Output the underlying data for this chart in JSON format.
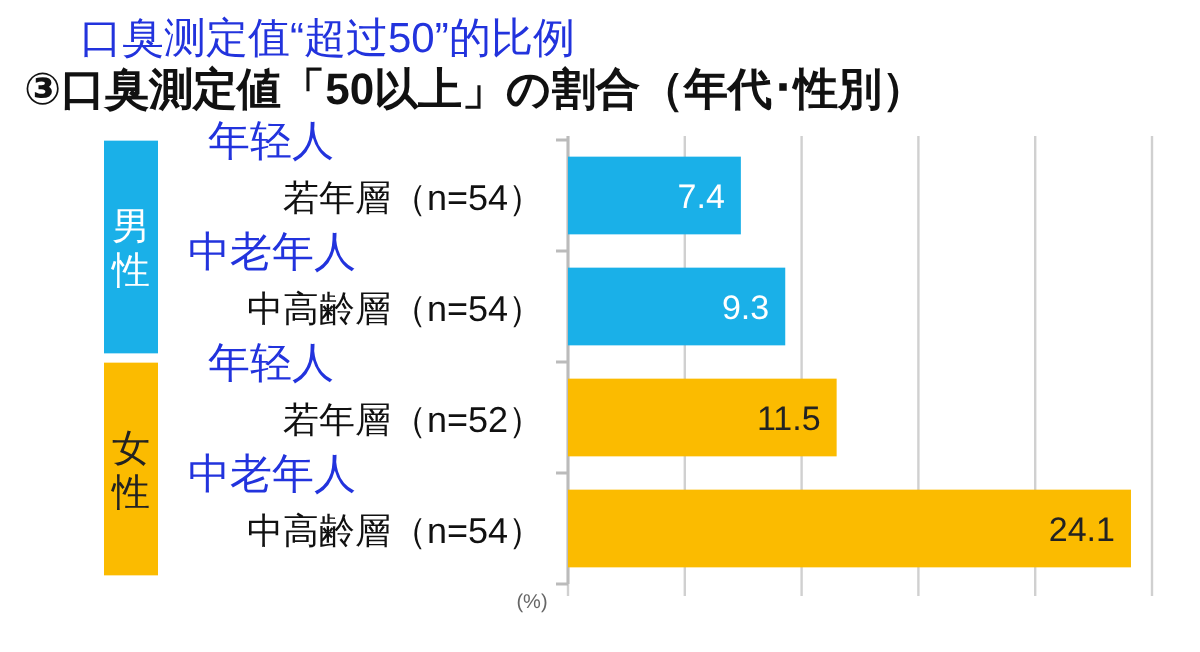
{
  "chart_data": {
    "type": "bar",
    "orientation": "horizontal",
    "title": "③口臭測定値「50以上」の割合（年代･性別）",
    "xlabel": "(%)",
    "categories": [
      "若年層（n=54）",
      "中高齢層（n=54）",
      "若年層（n=52）",
      "中高齢層（n=54）"
    ],
    "values": [
      7.4,
      9.3,
      11.5,
      24.1
    ],
    "colors": [
      "#1ab0e8",
      "#1ab0e8",
      "#fbbb00",
      "#fbbb00"
    ],
    "xlim": [
      0,
      25
    ],
    "xticks": [
      {
        "value": 0,
        "label": null
      },
      {
        "value": 5,
        "label": null
      },
      {
        "value": 10,
        "label": null
      },
      {
        "value": 15,
        "label": null
      },
      {
        "value": 20,
        "label": null
      },
      {
        "value": 25,
        "label": null
      }
    ],
    "grid": "x",
    "data_labels": true,
    "annotations": [
      "口臭测定值“超过50”的比例",
      "年轻人",
      "中老年人",
      "年轻人",
      "中老年人",
      "男性",
      "女性"
    ]
  }
}
